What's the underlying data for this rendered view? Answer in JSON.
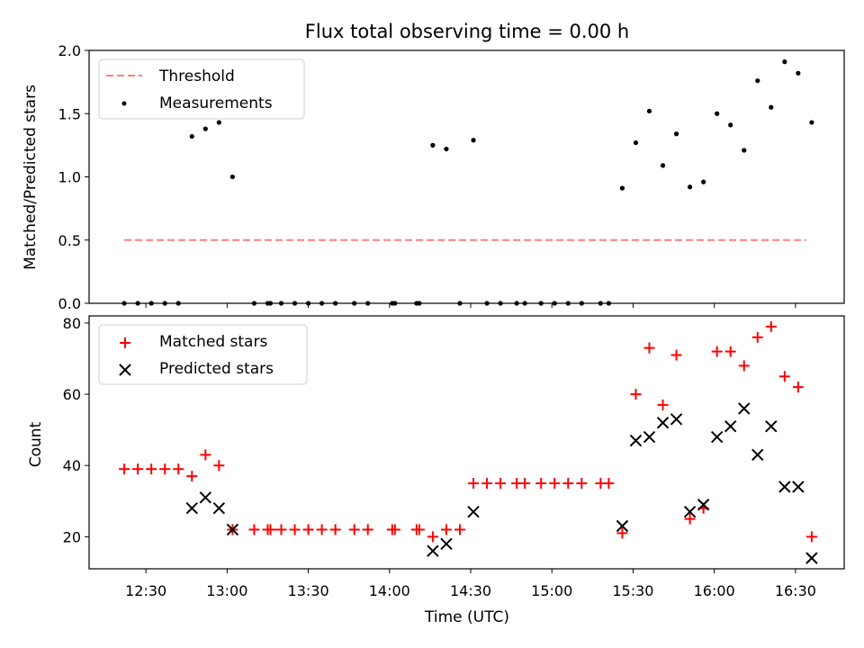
{
  "chart_data": [
    {
      "type": "scatter",
      "title": "Flux total observing time = 0.00 h",
      "xlabel": "",
      "ylabel": "Matched/Predicted stars",
      "ylim": [
        0,
        2.0
      ],
      "yticks": [
        0.0,
        0.5,
        1.0,
        1.5,
        2.0
      ],
      "ytick_labels": [
        "0.0",
        "0.5",
        "1.0",
        "1.5",
        "2.0"
      ],
      "threshold": {
        "name": "Threshold",
        "value": 0.5,
        "x_start": "12:22",
        "x_end": "16:34",
        "color": "#ff7f7f"
      },
      "series": [
        {
          "name": "Measurements",
          "color": "#000000",
          "points": [
            [
              "12:22",
              0
            ],
            [
              "12:27",
              0
            ],
            [
              "12:32",
              0
            ],
            [
              "12:37",
              0
            ],
            [
              "12:42",
              0
            ],
            [
              "12:47",
              1.32
            ],
            [
              "12:52",
              1.38
            ],
            [
              "12:57",
              1.43
            ],
            [
              "13:02",
              1.0
            ],
            [
              "13:10",
              0
            ],
            [
              "13:15",
              0
            ],
            [
              "13:16",
              0
            ],
            [
              "13:20",
              0
            ],
            [
              "13:25",
              0
            ],
            [
              "13:30",
              0
            ],
            [
              "13:35",
              0
            ],
            [
              "13:40",
              0
            ],
            [
              "13:47",
              0
            ],
            [
              "13:52",
              0
            ],
            [
              "14:01",
              0
            ],
            [
              "14:02",
              0
            ],
            [
              "14:10",
              0
            ],
            [
              "14:11",
              0
            ],
            [
              "14:16",
              1.25
            ],
            [
              "14:21",
              1.22
            ],
            [
              "14:26",
              0
            ],
            [
              "14:31",
              1.29
            ],
            [
              "14:36",
              0
            ],
            [
              "14:41",
              0
            ],
            [
              "14:47",
              0
            ],
            [
              "14:50",
              0
            ],
            [
              "14:56",
              0
            ],
            [
              "15:01",
              0
            ],
            [
              "15:06",
              0
            ],
            [
              "15:11",
              0
            ],
            [
              "15:18",
              0
            ],
            [
              "15:21",
              0
            ],
            [
              "15:26",
              0.91
            ],
            [
              "15:31",
              1.27
            ],
            [
              "15:36",
              1.52
            ],
            [
              "15:41",
              1.09
            ],
            [
              "15:46",
              1.34
            ],
            [
              "15:51",
              0.92
            ],
            [
              "15:56",
              0.96
            ],
            [
              "16:01",
              1.5
            ],
            [
              "16:06",
              1.41
            ],
            [
              "16:11",
              1.21
            ],
            [
              "16:16",
              1.76
            ],
            [
              "16:21",
              1.55
            ],
            [
              "16:26",
              1.91
            ],
            [
              "16:31",
              1.82
            ],
            [
              "16:36",
              1.43
            ]
          ]
        }
      ],
      "legend": {
        "position": "top-left",
        "entries": [
          "Threshold",
          "Measurements"
        ]
      }
    },
    {
      "type": "scatter",
      "title": "",
      "xlabel": "Time (UTC)",
      "ylabel": "Count",
      "ylim": [
        11,
        82
      ],
      "xlim": [
        "12:09",
        "16:48"
      ],
      "yticks": [
        20,
        40,
        60,
        80
      ],
      "ytick_labels": [
        "20",
        "40",
        "60",
        "80"
      ],
      "xticks": [
        "12:30",
        "13:00",
        "13:30",
        "14:00",
        "14:30",
        "15:00",
        "15:30",
        "16:00",
        "16:30"
      ],
      "xtick_labels": [
        "12:30",
        "13:00",
        "13:30",
        "14:00",
        "14:30",
        "15:00",
        "15:30",
        "16:00",
        "16:30"
      ],
      "series": [
        {
          "name": "Matched stars",
          "marker": "plus",
          "color": "#ff0000",
          "points": [
            [
              "12:22",
              39
            ],
            [
              "12:27",
              39
            ],
            [
              "12:32",
              39
            ],
            [
              "12:37",
              39
            ],
            [
              "12:42",
              39
            ],
            [
              "12:47",
              37
            ],
            [
              "12:52",
              43
            ],
            [
              "12:57",
              40
            ],
            [
              "13:02",
              22
            ],
            [
              "13:10",
              22
            ],
            [
              "13:15",
              22
            ],
            [
              "13:16",
              22
            ],
            [
              "13:20",
              22
            ],
            [
              "13:25",
              22
            ],
            [
              "13:30",
              22
            ],
            [
              "13:35",
              22
            ],
            [
              "13:40",
              22
            ],
            [
              "13:47",
              22
            ],
            [
              "13:52",
              22
            ],
            [
              "14:01",
              22
            ],
            [
              "14:02",
              22
            ],
            [
              "14:10",
              22
            ],
            [
              "14:11",
              22
            ],
            [
              "14:16",
              20
            ],
            [
              "14:21",
              22
            ],
            [
              "14:26",
              22
            ],
            [
              "14:31",
              35
            ],
            [
              "14:36",
              35
            ],
            [
              "14:41",
              35
            ],
            [
              "14:47",
              35
            ],
            [
              "14:50",
              35
            ],
            [
              "14:56",
              35
            ],
            [
              "15:01",
              35
            ],
            [
              "15:06",
              35
            ],
            [
              "15:11",
              35
            ],
            [
              "15:18",
              35
            ],
            [
              "15:21",
              35
            ],
            [
              "15:26",
              21
            ],
            [
              "15:31",
              60
            ],
            [
              "15:36",
              73
            ],
            [
              "15:41",
              57
            ],
            [
              "15:46",
              71
            ],
            [
              "15:51",
              25
            ],
            [
              "15:56",
              28
            ],
            [
              "16:01",
              72
            ],
            [
              "16:06",
              72
            ],
            [
              "16:11",
              68
            ],
            [
              "16:16",
              76
            ],
            [
              "16:21",
              79
            ],
            [
              "16:26",
              65
            ],
            [
              "16:31",
              62
            ],
            [
              "16:36",
              20
            ]
          ]
        },
        {
          "name": "Predicted stars",
          "marker": "x",
          "color": "#000000",
          "points": [
            [
              "12:47",
              28
            ],
            [
              "12:52",
              31
            ],
            [
              "12:57",
              28
            ],
            [
              "13:02",
              22
            ],
            [
              "14:16",
              16
            ],
            [
              "14:21",
              18
            ],
            [
              "14:31",
              27
            ],
            [
              "15:26",
              23
            ],
            [
              "15:31",
              47
            ],
            [
              "15:36",
              48
            ],
            [
              "15:41",
              52
            ],
            [
              "15:46",
              53
            ],
            [
              "15:51",
              27
            ],
            [
              "15:56",
              29
            ],
            [
              "16:01",
              48
            ],
            [
              "16:06",
              51
            ],
            [
              "16:11",
              56
            ],
            [
              "16:16",
              43
            ],
            [
              "16:21",
              51
            ],
            [
              "16:26",
              34
            ],
            [
              "16:31",
              34
            ],
            [
              "16:36",
              14
            ]
          ]
        }
      ],
      "legend": {
        "position": "top-left",
        "entries": [
          "Matched stars",
          "Predicted stars"
        ]
      }
    }
  ]
}
